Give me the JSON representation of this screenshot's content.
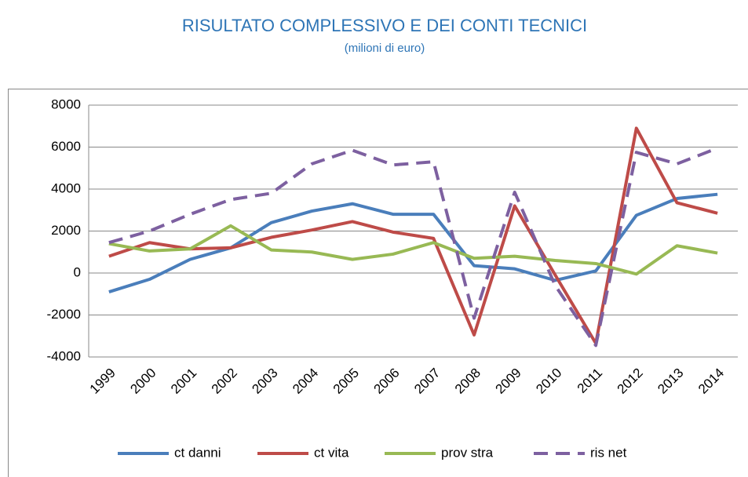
{
  "chart_data": {
    "type": "line",
    "title": "RISULTATO COMPLESSIVO E DEI CONTI TECNICI",
    "subtitle": "(milioni di euro)",
    "categories": [
      "1999",
      "2000",
      "2001",
      "2002",
      "2003",
      "2004",
      "2005",
      "2006",
      "2007",
      "2008",
      "2009",
      "2010",
      "2011",
      "2012",
      "2013",
      "2014"
    ],
    "series": [
      {
        "name": "ct danni",
        "color": "#4a7ebb",
        "values": [
          -900,
          -300,
          650,
          1200,
          2400,
          2950,
          3300,
          2800,
          2800,
          350,
          200,
          -350,
          100,
          2750,
          3550,
          3750
        ]
      },
      {
        "name": "ct vita",
        "color": "#be4b48",
        "values": [
          800,
          1450,
          1150,
          1200,
          1700,
          2050,
          2450,
          1950,
          1650,
          -2950,
          3200,
          -100,
          -3350,
          6900,
          3350,
          2850
        ]
      },
      {
        "name": "prov stra",
        "color": "#98b954",
        "values": [
          1400,
          1050,
          1150,
          2250,
          1100,
          1000,
          650,
          900,
          1450,
          700,
          800,
          600,
          450,
          -50,
          1300,
          950
        ]
      },
      {
        "name": "ris net",
        "color": "#7d60a0",
        "dashed": true,
        "values": [
          1450,
          2000,
          2800,
          3500,
          3800,
          5200,
          5850,
          5150,
          5300,
          -2150,
          3850,
          -600,
          -3450,
          5750,
          5200,
          5950
        ]
      }
    ],
    "ylim": [
      -4000,
      8000
    ],
    "yticks": [
      -4000,
      -2000,
      0,
      2000,
      4000,
      6000,
      8000
    ],
    "grid": true,
    "legend": "bottom"
  }
}
